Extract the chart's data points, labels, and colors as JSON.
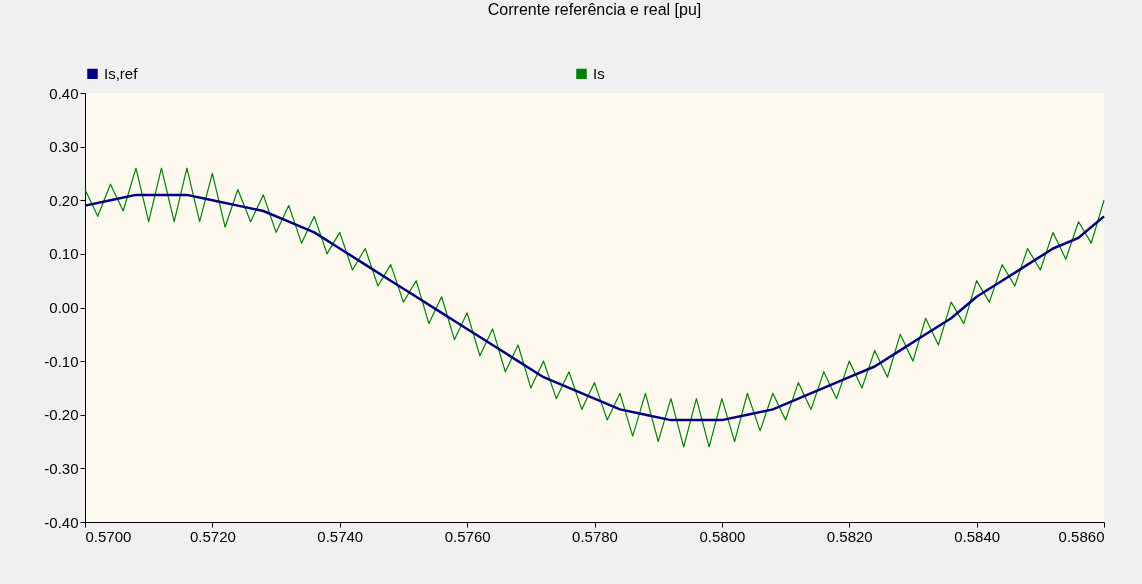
{
  "chart_data": {
    "type": "line",
    "title": "Corrente referência e real [pu]",
    "xlim": [
      0.57,
      0.586
    ],
    "xticks": [
      {
        "value": 0.57,
        "label": "0.5700"
      },
      {
        "value": 0.572,
        "label": "0.5720"
      },
      {
        "value": 0.574,
        "label": "0.5740"
      },
      {
        "value": 0.576,
        "label": "0.5760"
      },
      {
        "value": 0.578,
        "label": "0.5780"
      },
      {
        "value": 0.58,
        "label": "0.5800"
      },
      {
        "value": 0.582,
        "label": "0.5820"
      },
      {
        "value": 0.584,
        "label": "0.5840"
      },
      {
        "value": 0.586,
        "label": "0.5860"
      }
    ],
    "ylim": [
      -0.4,
      0.4
    ],
    "yticks": [
      {
        "value": -0.4,
        "label": "-0.40"
      },
      {
        "value": -0.3,
        "label": "-0.30"
      },
      {
        "value": -0.2,
        "label": "-0.20"
      },
      {
        "value": -0.1,
        "label": "-0.10"
      },
      {
        "value": 0,
        "label": "0.00"
      },
      {
        "value": 0.1,
        "label": "0.10"
      },
      {
        "value": 0.2,
        "label": "0.20"
      },
      {
        "value": 0.3,
        "label": "0.30"
      },
      {
        "value": 0.4,
        "label": "0.40"
      }
    ],
    "grid": false,
    "legend": "top left",
    "series": [
      {
        "name": "Is,ref",
        "color": "#000080",
        "x": [
          0.57,
          0.5704,
          0.5708,
          0.5712,
          0.5716,
          0.572,
          0.5724,
          0.5728,
          0.5732,
          0.5736,
          0.574,
          0.5744,
          0.5748,
          0.5752,
          0.5756,
          0.576,
          0.5764,
          0.5768,
          0.5772,
          0.5776,
          0.578,
          0.5784,
          0.5788,
          0.5792,
          0.5796,
          0.58,
          0.5804,
          0.5808,
          0.5812,
          0.5816,
          0.582,
          0.5824,
          0.5828,
          0.5832,
          0.5836,
          0.584,
          0.5844,
          0.5848,
          0.5852,
          0.5856,
          0.586
        ],
        "values": [
          0.19,
          0.2,
          0.21,
          0.21,
          0.21,
          0.2,
          0.19,
          0.18,
          0.16,
          0.14,
          0.11,
          0.08,
          0.05,
          0.02,
          -0.01,
          -0.04,
          -0.07,
          -0.1,
          -0.13,
          -0.15,
          -0.17,
          -0.19,
          -0.2,
          -0.21,
          -0.21,
          -0.21,
          -0.2,
          -0.19,
          -0.17,
          -0.15,
          -0.13,
          -0.11,
          -0.08,
          -0.05,
          -0.02,
          0.02,
          0.05,
          0.08,
          0.11,
          0.13,
          0.17
        ]
      },
      {
        "name": "Is",
        "color": "#008000",
        "x": [
          0.57,
          0.5702,
          0.5704,
          0.5706,
          0.5708,
          0.571,
          0.5712,
          0.5714,
          0.5716,
          0.5718,
          0.572,
          0.5722,
          0.5724,
          0.5726,
          0.5728,
          0.573,
          0.5732,
          0.5734,
          0.5736,
          0.5738,
          0.574,
          0.5742,
          0.5744,
          0.5746,
          0.5748,
          0.575,
          0.5752,
          0.5754,
          0.5756,
          0.5758,
          0.576,
          0.5762,
          0.5764,
          0.5766,
          0.5768,
          0.577,
          0.5772,
          0.5774,
          0.5776,
          0.5778,
          0.578,
          0.5782,
          0.5784,
          0.5786,
          0.5788,
          0.579,
          0.5792,
          0.5794,
          0.5796,
          0.5798,
          0.58,
          0.5802,
          0.5804,
          0.5806,
          0.5808,
          0.581,
          0.5812,
          0.5814,
          0.5816,
          0.5818,
          0.582,
          0.5822,
          0.5824,
          0.5826,
          0.5828,
          0.583,
          0.5832,
          0.5834,
          0.5836,
          0.5838,
          0.584,
          0.5842,
          0.5844,
          0.5846,
          0.5848,
          0.585,
          0.5852,
          0.5854,
          0.5856,
          0.5858,
          0.586
        ],
        "values": [
          0.22,
          0.17,
          0.23,
          0.18,
          0.26,
          0.16,
          0.26,
          0.16,
          0.26,
          0.16,
          0.25,
          0.15,
          0.22,
          0.16,
          0.21,
          0.14,
          0.19,
          0.12,
          0.17,
          0.1,
          0.14,
          0.07,
          0.11,
          0.04,
          0.08,
          0.01,
          0.05,
          -0.03,
          0.02,
          -0.06,
          -0.01,
          -0.09,
          -0.04,
          -0.12,
          -0.07,
          -0.15,
          -0.1,
          -0.17,
          -0.12,
          -0.19,
          -0.14,
          -0.21,
          -0.16,
          -0.24,
          -0.16,
          -0.25,
          -0.17,
          -0.26,
          -0.17,
          -0.26,
          -0.17,
          -0.25,
          -0.16,
          -0.23,
          -0.16,
          -0.21,
          -0.14,
          -0.19,
          -0.12,
          -0.17,
          -0.1,
          -0.15,
          -0.08,
          -0.13,
          -0.05,
          -0.1,
          -0.02,
          -0.07,
          0.01,
          -0.03,
          0.05,
          0.01,
          0.08,
          0.04,
          0.11,
          0.07,
          0.14,
          0.09,
          0.16,
          0.12,
          0.2
        ]
      }
    ]
  }
}
